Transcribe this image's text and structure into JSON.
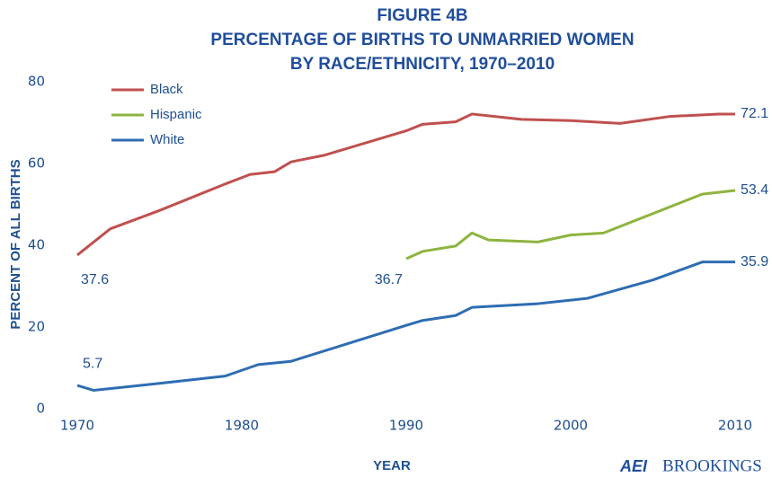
{
  "chart_data": {
    "type": "line",
    "title": [
      "FIGURE 4B",
      "PERCENTAGE OF BIRTHS TO UNMARRIED WOMEN",
      "BY RACE/ETHNICITY, 1970–2010"
    ],
    "x_label": "YEAR",
    "y_label": "PERCENT OF ALL BIRTHS",
    "xlim": [
      1970,
      2010
    ],
    "xticks": [
      1970,
      1980,
      1990,
      2000,
      2010
    ],
    "ylim": [
      0,
      80
    ],
    "yticks": [
      0,
      20,
      40,
      60,
      80
    ],
    "grid": false,
    "legend": "upper left",
    "series": [
      {
        "name": "Black",
        "color": "#c0504f",
        "x": [
          1970,
          1972,
          1975,
          1979,
          1980.5,
          1982,
          1983,
          1985,
          1990,
          1991,
          1993,
          1994,
          1997,
          2000,
          2003,
          2006,
          2009,
          2010
        ],
        "values": [
          37.6,
          44,
          48.5,
          55,
          57.3,
          58,
          60.4,
          62,
          68,
          69.6,
          70.2,
          72.1,
          70.8,
          70.5,
          69.8,
          71.5,
          72.1,
          72.1
        ],
        "value_labels": [
          "37.6",
          null,
          null,
          null,
          null,
          null,
          null,
          null,
          null,
          null,
          null,
          null,
          null,
          null,
          null,
          null,
          null,
          "72.1"
        ]
      },
      {
        "name": "Hispanic",
        "color": "#8db43e",
        "x": [
          1990,
          1991,
          1993,
          1994,
          1995,
          1998,
          2000,
          2002,
          2008,
          2010
        ],
        "values": [
          36.7,
          38.5,
          39.8,
          43,
          41.3,
          40.8,
          42.5,
          43,
          52.5,
          53.4
        ],
        "value_labels": [
          "36.7",
          null,
          null,
          null,
          null,
          null,
          null,
          null,
          null,
          "53.4"
        ]
      },
      {
        "name": "White",
        "color": "#2e6db3",
        "x": [
          1970,
          1971,
          1975,
          1979,
          1981,
          1983,
          1990,
          1991,
          1993,
          1994,
          1998,
          2001,
          2005,
          2008,
          2010
        ],
        "values": [
          5.7,
          4.5,
          6.2,
          8,
          10.8,
          11.6,
          20.4,
          21.6,
          22.8,
          24.8,
          25.7,
          27,
          31.5,
          35.9,
          35.9
        ],
        "value_labels": [
          "5.7",
          null,
          null,
          null,
          null,
          null,
          null,
          null,
          null,
          null,
          null,
          null,
          null,
          null,
          "35.9"
        ]
      }
    ]
  },
  "logo": {
    "mark": "AEI",
    "text": "BROOKINGS"
  }
}
